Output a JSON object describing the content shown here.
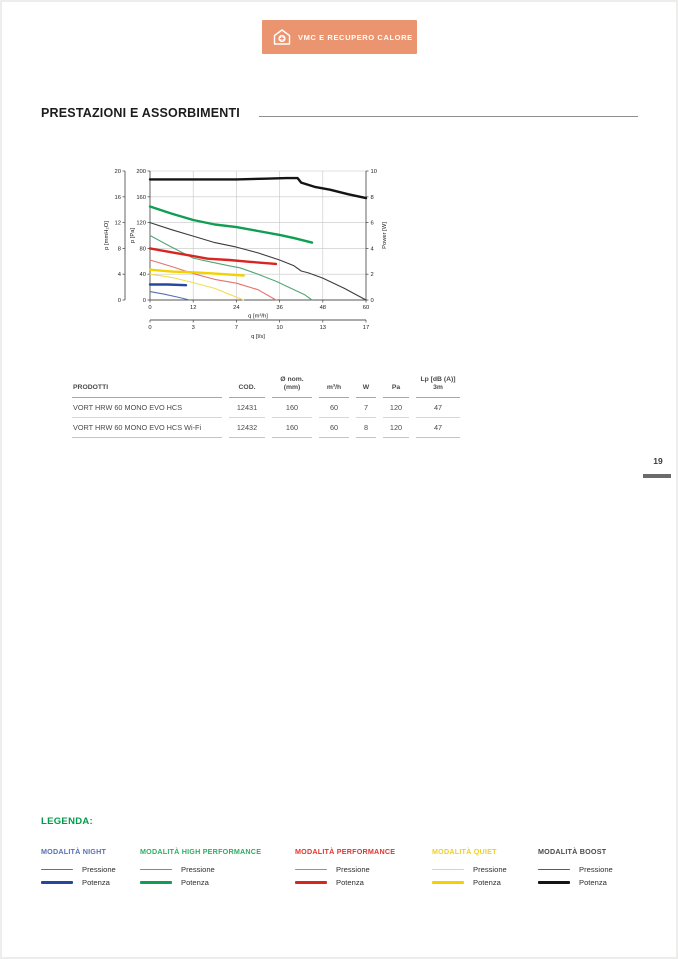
{
  "header": {
    "badge_label": "VMC E RECUPERO CALORE",
    "badge_color": "#EB9470"
  },
  "section_title": "PRESTAZIONI E ASSORBIMENTI",
  "page_number": "19",
  "chart_data": {
    "type": "line",
    "x_axis": {
      "label": "q [m³/h]",
      "ticks": [
        0,
        12,
        24,
        36,
        48,
        60
      ],
      "range": [
        0,
        60
      ]
    },
    "x_axis_secondary": {
      "label": "q [l/s]",
      "tick_labels": [
        "0",
        "3",
        "7",
        "10",
        "13",
        "17"
      ]
    },
    "y_axis_pa": {
      "label": "p [Pa]",
      "ticks": [
        0,
        40,
        80,
        120,
        160,
        200
      ],
      "range": [
        0,
        200
      ]
    },
    "y_axis_mmh2o": {
      "label": "p [mmH₂O]",
      "ticks": [
        0,
        4,
        8,
        12,
        16,
        20
      ],
      "range": [
        0,
        20
      ]
    },
    "y_axis_power": {
      "label": "Power [W]",
      "ticks": [
        0,
        2,
        4,
        6,
        8,
        10
      ],
      "range": [
        0,
        10
      ]
    },
    "grid": true,
    "legend_position": "bottom-of-page",
    "series": [
      {
        "name": "Modalità Boost - Potenza",
        "axis": "W",
        "style": "thick",
        "color": "#141414",
        "points": [
          [
            0,
            9.35
          ],
          [
            12,
            9.35
          ],
          [
            24,
            9.35
          ],
          [
            32,
            9.4
          ],
          [
            38,
            9.45
          ],
          [
            41,
            9.45
          ],
          [
            42,
            9.1
          ],
          [
            46,
            8.75
          ],
          [
            50,
            8.55
          ],
          [
            55,
            8.2
          ],
          [
            60,
            7.9
          ]
        ]
      },
      {
        "name": "Modalità Boost - Pressione",
        "axis": "Pa",
        "style": "thin",
        "color": "#3c3c3c",
        "points": [
          [
            0,
            120
          ],
          [
            6,
            109
          ],
          [
            12,
            99
          ],
          [
            18,
            89
          ],
          [
            24,
            82
          ],
          [
            30,
            73
          ],
          [
            36,
            62
          ],
          [
            40,
            53
          ],
          [
            42,
            45
          ],
          [
            44,
            42
          ],
          [
            48,
            34
          ],
          [
            54,
            18
          ],
          [
            60,
            0
          ]
        ]
      },
      {
        "name": "Modalità High Performance - Potenza",
        "axis": "W",
        "style": "thick",
        "color": "#0F9E52",
        "points": [
          [
            0,
            7.25
          ],
          [
            6,
            6.7
          ],
          [
            12,
            6.2
          ],
          [
            18,
            5.85
          ],
          [
            24,
            5.65
          ],
          [
            30,
            5.35
          ],
          [
            36,
            5.05
          ],
          [
            40,
            4.8
          ],
          [
            45,
            4.45
          ]
        ]
      },
      {
        "name": "Modalità High Performance - Pressione",
        "axis": "Pa",
        "style": "thin",
        "color": "#4FA873",
        "points": [
          [
            0,
            100
          ],
          [
            6,
            82
          ],
          [
            12,
            65
          ],
          [
            16,
            60
          ],
          [
            22,
            53
          ],
          [
            25,
            50
          ],
          [
            30,
            40
          ],
          [
            35,
            29
          ],
          [
            40,
            16
          ],
          [
            43,
            8
          ],
          [
            45,
            0
          ]
        ]
      },
      {
        "name": "Modalità Performance - Potenza",
        "axis": "W",
        "style": "thick",
        "color": "#D7251F",
        "points": [
          [
            0,
            4.0
          ],
          [
            6,
            3.7
          ],
          [
            12,
            3.4
          ],
          [
            16,
            3.2
          ],
          [
            22,
            3.1
          ],
          [
            28,
            2.95
          ],
          [
            35,
            2.8
          ]
        ]
      },
      {
        "name": "Modalità Performance - Pressione",
        "axis": "Pa",
        "style": "thin",
        "color": "#E2736B",
        "points": [
          [
            0,
            62
          ],
          [
            6,
            52
          ],
          [
            12,
            41
          ],
          [
            18,
            32
          ],
          [
            24,
            26
          ],
          [
            30,
            16
          ],
          [
            35,
            0
          ]
        ]
      },
      {
        "name": "Modalità Quiet - Potenza",
        "axis": "W",
        "style": "thick",
        "color": "#F2D200",
        "points": [
          [
            0,
            2.35
          ],
          [
            6,
            2.2
          ],
          [
            12,
            2.15
          ],
          [
            18,
            2.05
          ],
          [
            26,
            1.9
          ]
        ]
      },
      {
        "name": "Modalità Quiet - Pressione",
        "axis": "Pa",
        "style": "thin",
        "color": "#F2DC55",
        "points": [
          [
            0,
            40
          ],
          [
            6,
            35
          ],
          [
            12,
            27
          ],
          [
            18,
            18
          ],
          [
            22,
            9
          ],
          [
            26,
            0
          ]
        ]
      },
      {
        "name": "Modalità Night - Potenza",
        "axis": "W",
        "style": "thick",
        "color": "#24489E",
        "points": [
          [
            0,
            1.2
          ],
          [
            5,
            1.2
          ],
          [
            10,
            1.15
          ]
        ]
      },
      {
        "name": "Modalità Night - Pressione",
        "axis": "Pa",
        "style": "thin",
        "color": "#5570B4",
        "points": [
          [
            0,
            13
          ],
          [
            4,
            9
          ],
          [
            8,
            4
          ],
          [
            11,
            0
          ]
        ]
      }
    ]
  },
  "table": {
    "headers": [
      "PRODOTTI",
      "COD.",
      "Ø nom.\n(mm)",
      "m³/h",
      "W",
      "Pa",
      "Lp [dB (A)]\n3m"
    ],
    "rows": [
      [
        "VORT HRW 60 MONO EVO HCS",
        "12431",
        "160",
        "60",
        "7",
        "120",
        "47"
      ],
      [
        "VORT HRW 60 MONO EVO HCS Wi-Fi",
        "12432",
        "160",
        "60",
        "8",
        "120",
        "47"
      ]
    ]
  },
  "legend": {
    "title": "LEGENDA:",
    "title_color": "#009A49",
    "pressure_label": "Pressione",
    "power_label": "Potenza",
    "groups": [
      {
        "label": "MODALITÀ NIGHT",
        "title_color": "#5570B4",
        "thin_color": "#5570B4",
        "thick_color": "#24489E"
      },
      {
        "label": "MODALITÀ HIGH PERFORMANCE",
        "title_color": "#2FAE63",
        "thin_color": "#4FA873",
        "thick_color": "#0F9E52"
      },
      {
        "label": "MODALITÀ PERFORMANCE",
        "title_color": "#E5342C",
        "thin_color": "#E2736B",
        "thick_color": "#D7251F"
      },
      {
        "label": "MODALITÀ QUIET",
        "title_color": "#EFCF2A",
        "thin_color": "#F2DC55",
        "thick_color": "#F2D200"
      },
      {
        "label": "MODALITÀ BOOST",
        "title_color": "#4A4A4A",
        "thin_color": "#5a5a5a",
        "thick_color": "#141414"
      }
    ]
  }
}
